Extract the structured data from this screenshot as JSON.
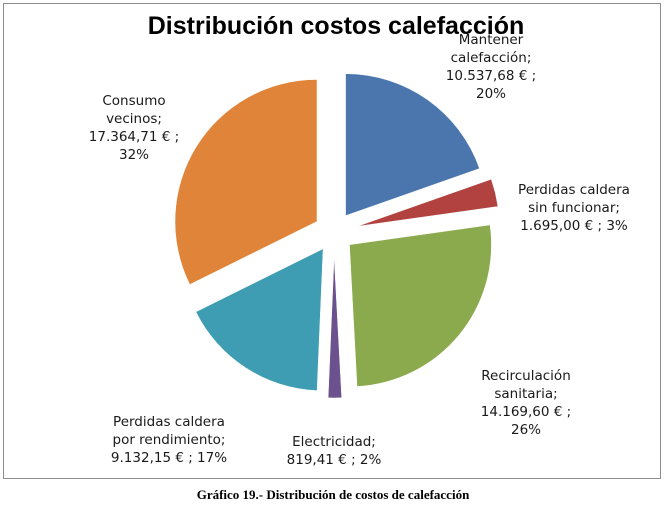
{
  "chart_data": {
    "type": "pie",
    "title": "Distribución costos calefacción",
    "exploded": true,
    "slices": [
      {
        "name": "Mantener calefacción",
        "value": 10537.68,
        "percent": 20,
        "color": "#4a76ad",
        "label_lines": [
          "Mantener",
          "calefacción;",
          "10.537,68 € ;",
          "20%"
        ]
      },
      {
        "name": "Perdidas caldera sin funcionar",
        "value": 1695.0,
        "percent": 3,
        "color": "#b1423f",
        "label_lines": [
          "Perdidas caldera",
          "sin funcionar;",
          "1.695,00 € ; 3%"
        ]
      },
      {
        "name": "Recirculación sanitaria",
        "value": 14169.6,
        "percent": 26,
        "color": "#8aaa4d",
        "label_lines": [
          "Recirculación",
          "sanitaria;",
          "14.169,60 € ;",
          "26%"
        ]
      },
      {
        "name": "Electricidad",
        "value": 819.41,
        "percent": 2,
        "color": "#6b528e",
        "label_lines": [
          "Electricidad;",
          "819,41 € ; 2%"
        ]
      },
      {
        "name": "Perdidas caldera por rendimiento",
        "value": 9132.15,
        "percent": 17,
        "color": "#3e9cb3",
        "label_lines": [
          "Perdidas caldera",
          "por rendimiento;",
          "9.132,15 € ; 17%"
        ]
      },
      {
        "name": "Consumo vecinos",
        "value": 17364.71,
        "percent": 32,
        "color": "#df8438",
        "label_lines": [
          "Consumo",
          "vecinos;",
          "17.364,71 € ;",
          "32%"
        ]
      }
    ],
    "legend": "none"
  },
  "caption": "Gráfico 19.- Distribución de costos de calefacción"
}
